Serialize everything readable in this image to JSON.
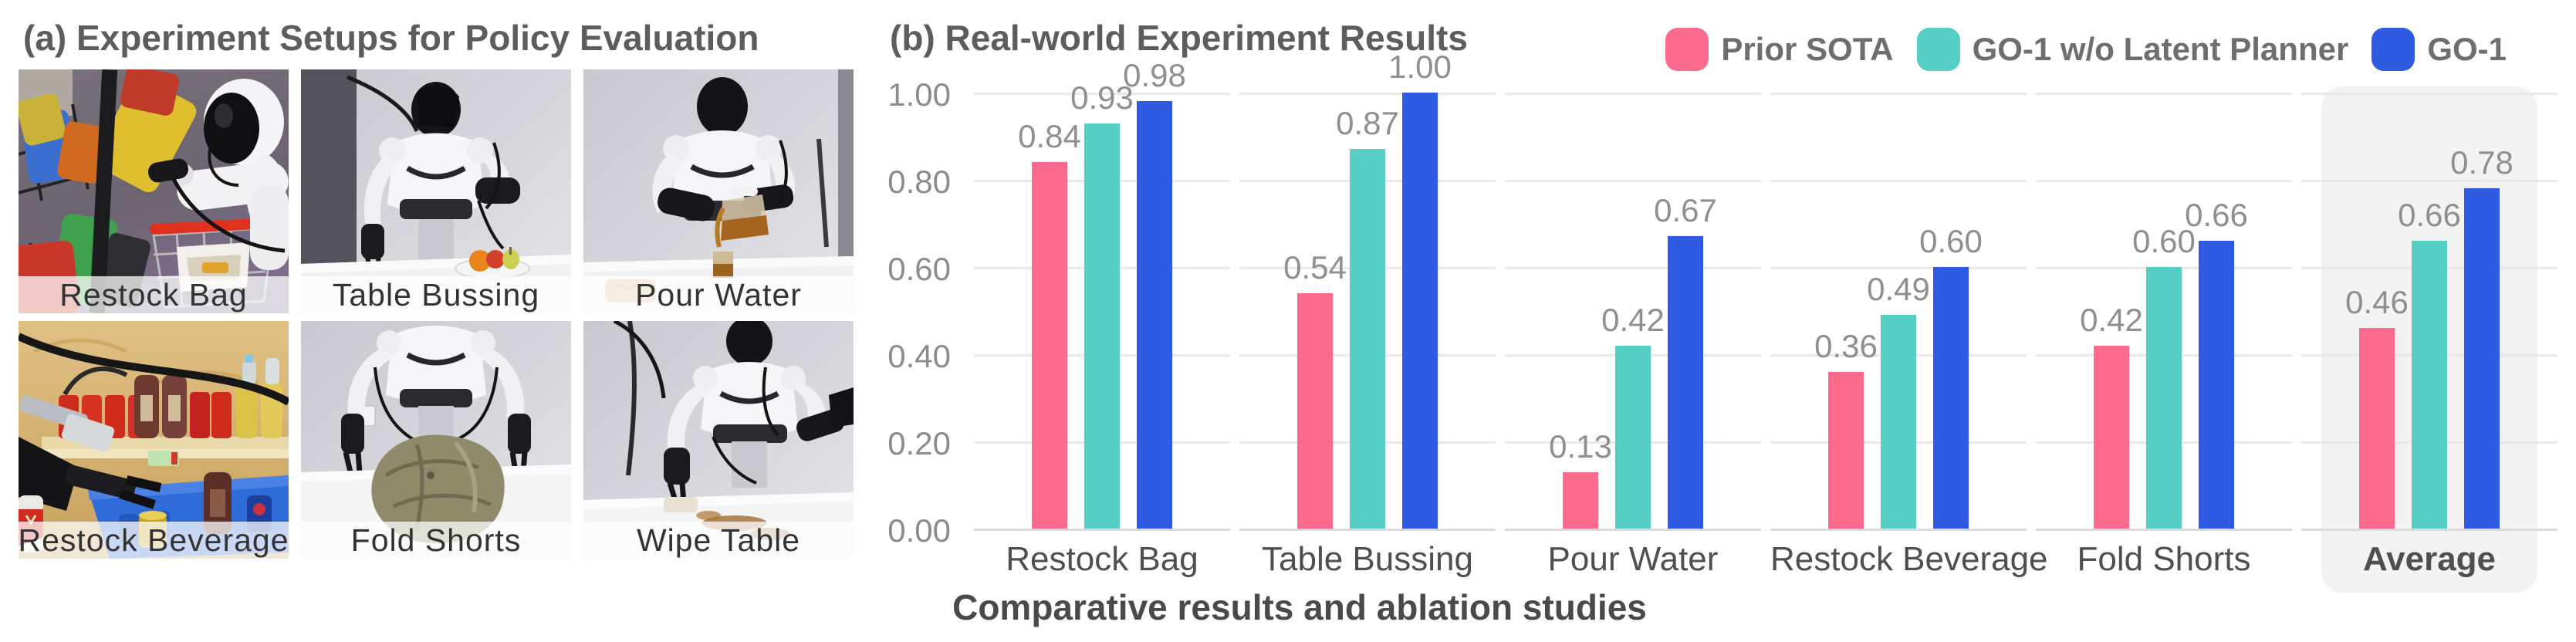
{
  "panel_a": {
    "title": "(a) Experiment Setups for Policy Evaluation",
    "photos": [
      {
        "label": "Restock Bag"
      },
      {
        "label": "Table Bussing"
      },
      {
        "label": "Pour Water"
      },
      {
        "label": "Restock Beverage"
      },
      {
        "label": "Fold Shorts"
      },
      {
        "label": "Wipe Table"
      }
    ]
  },
  "panel_b": {
    "title": "(b) Real-world Experiment Results",
    "caption": "Comparative results and ablation studies"
  },
  "chart_data": {
    "type": "bar",
    "title": "(b) Real-world Experiment Results",
    "categories": [
      "Restock Bag",
      "Table Bussing",
      "Pour Water",
      "Restock Beverage",
      "Fold Shorts",
      "Average"
    ],
    "series": [
      {
        "name": "Prior SOTA",
        "color": "#FC6A8E",
        "values": [
          0.84,
          0.54,
          0.13,
          0.36,
          0.42,
          0.46
        ]
      },
      {
        "name": "GO-1 w/o Latent Planner",
        "color": "#57CEC4",
        "values": [
          0.93,
          0.87,
          0.42,
          0.49,
          0.6,
          0.66
        ]
      },
      {
        "name": "GO-1",
        "color": "#2F5BE3",
        "values": [
          0.98,
          1.0,
          0.67,
          0.6,
          0.66,
          0.78
        ]
      }
    ],
    "yticks": [
      "0.00",
      "0.20",
      "0.40",
      "0.60",
      "0.80",
      "1.00"
    ],
    "ylim": [
      0,
      1.0
    ],
    "grid": true,
    "legend_position": "top-right",
    "highlight_category": "Average",
    "value_label_format": "2dp",
    "value_label_color": "#8f8f8f",
    "grid_color": "#e9e9e9",
    "highlight_color": "#f3f3f3"
  }
}
